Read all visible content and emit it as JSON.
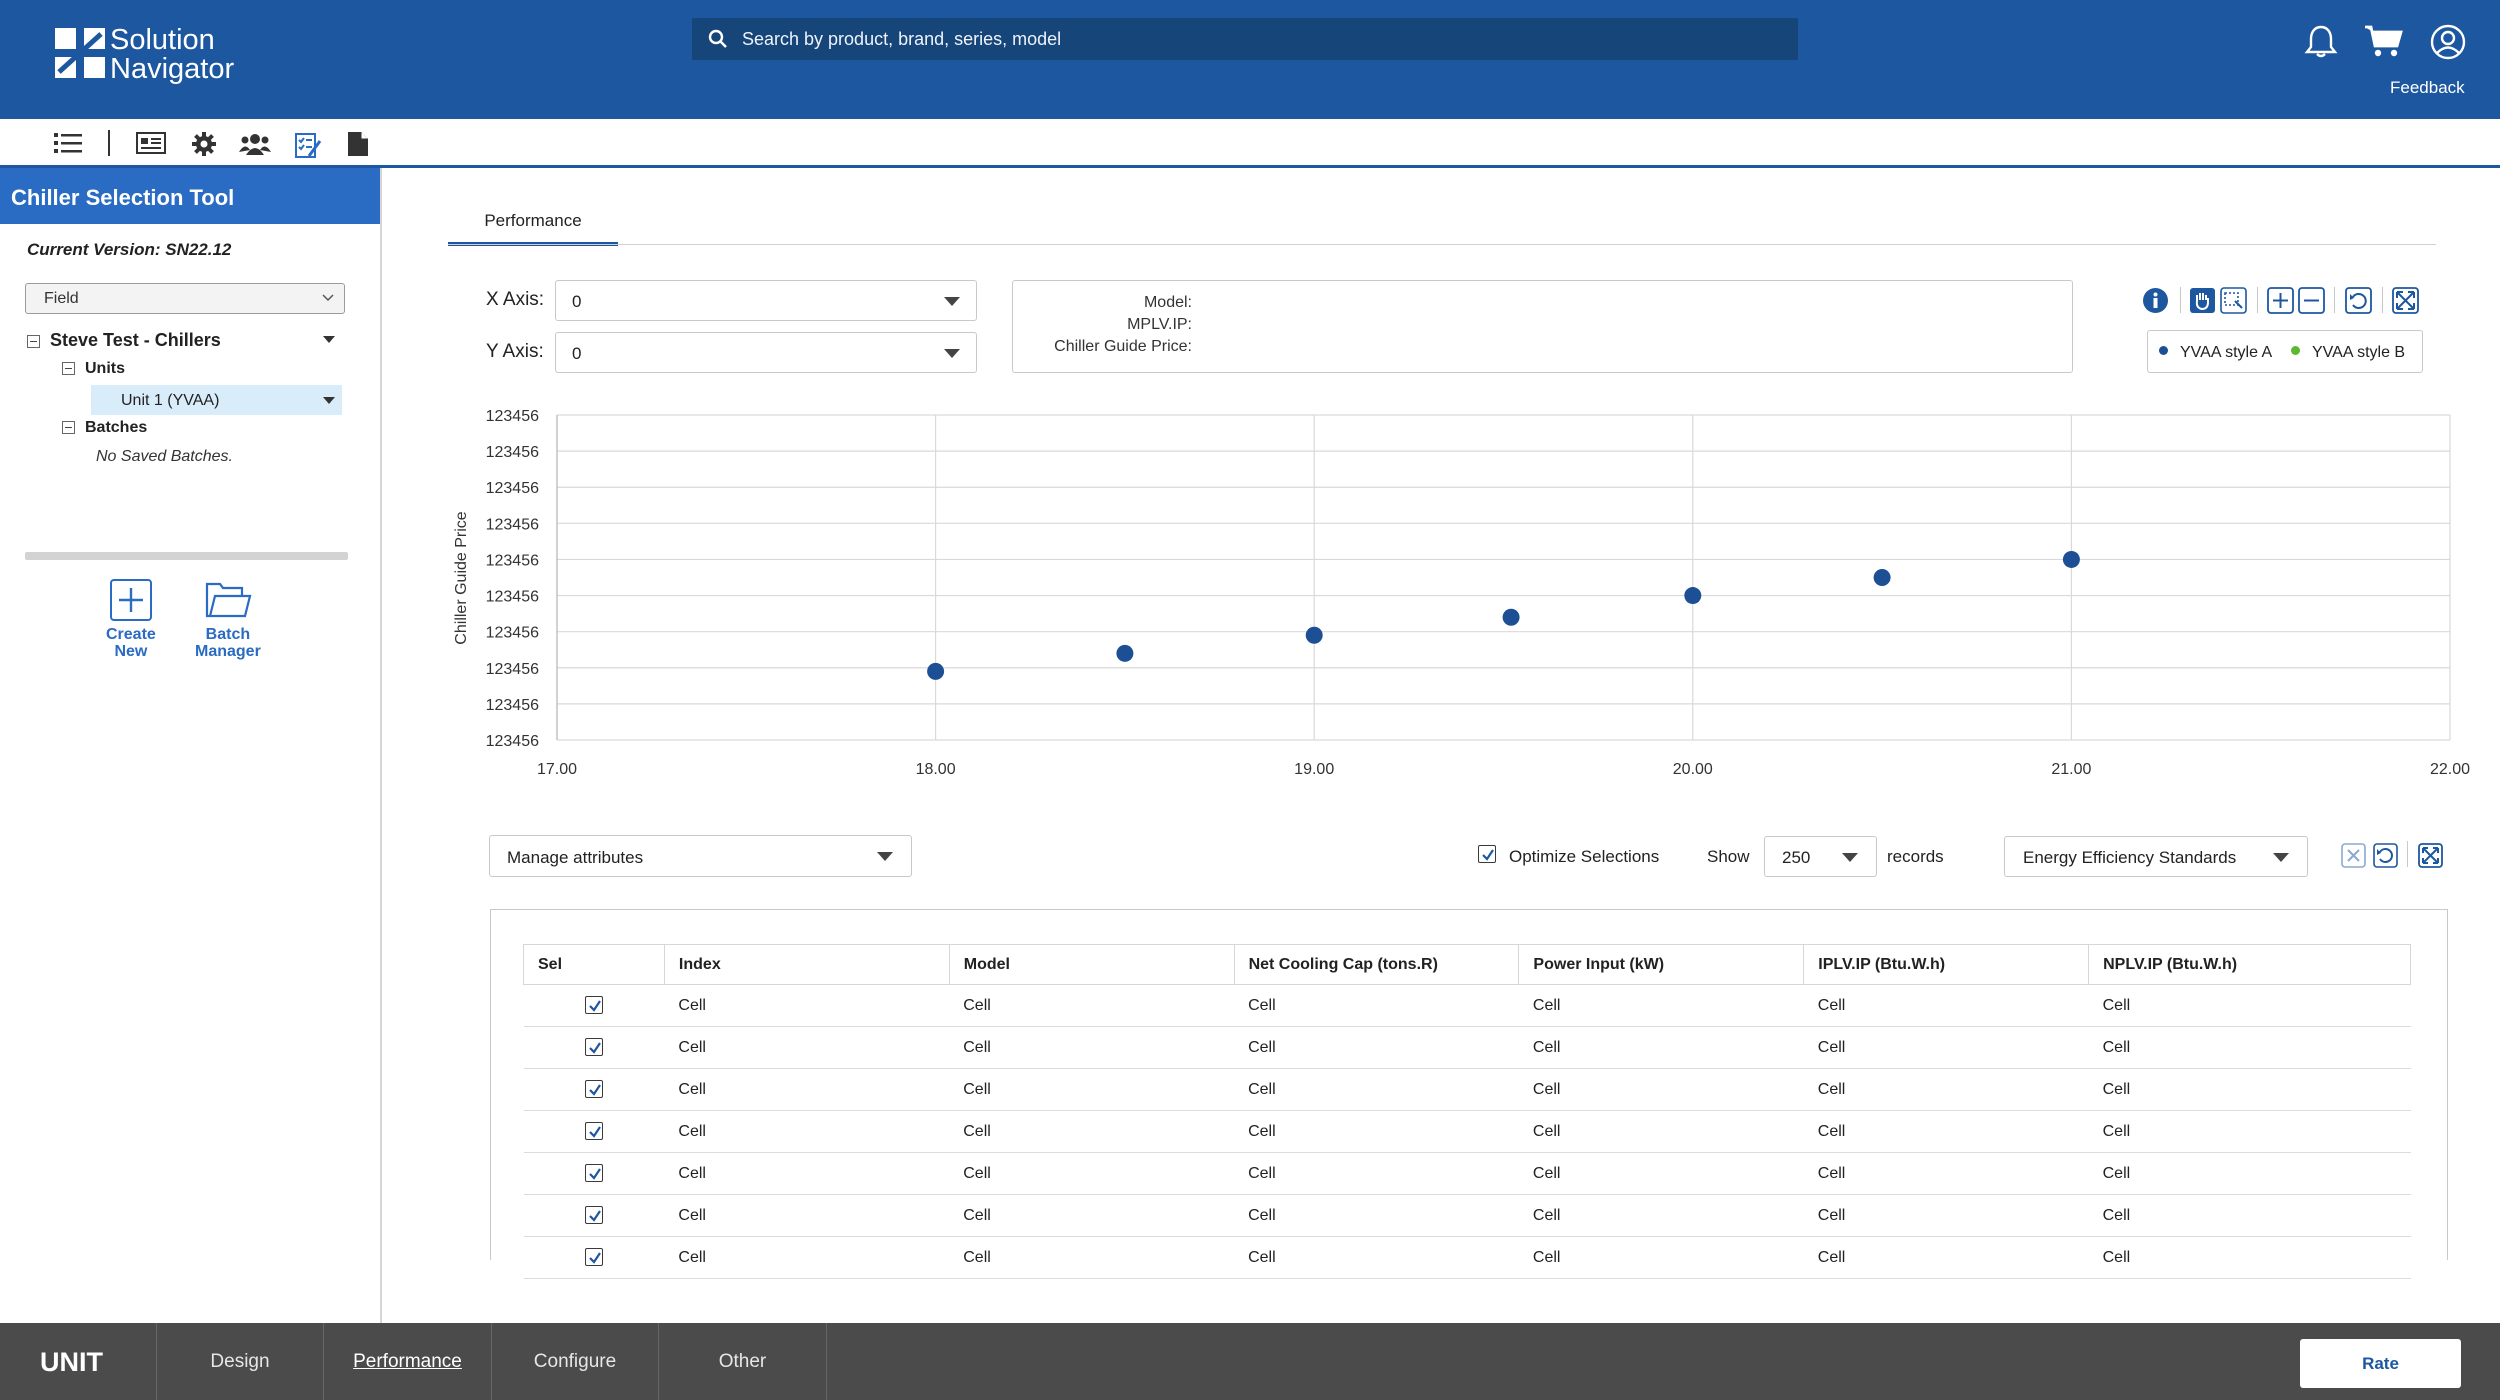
{
  "header": {
    "brand_line1": "Solution",
    "brand_line2": "Navigator",
    "search_placeholder": "Search by product, brand, series, model",
    "feedback_label": "Feedback",
    "icons": [
      "bell-icon",
      "cart-icon",
      "user-icon"
    ]
  },
  "toolbar": {
    "icons": [
      "list-icon",
      "catalog-icon",
      "gear-icon",
      "users-icon",
      "checklist-icon",
      "document-icon"
    ]
  },
  "sidebar": {
    "title": "Chiller Selection Tool",
    "version": "Current Version: SN22.12",
    "field_select": "Field",
    "tree": {
      "root": "Steve Test - Chillers",
      "units_label": "Units",
      "unit_item": "Unit 1 (YVAA)",
      "batches_label": "Batches",
      "no_batches": "No Saved Batches."
    },
    "create_new": [
      "Create",
      "New"
    ],
    "batch_manager": [
      "Batch",
      "Manager"
    ]
  },
  "main": {
    "tab": "Performance",
    "x_axis": {
      "label": "X Axis:",
      "value": "0"
    },
    "y_axis": {
      "label": "Y Axis:",
      "value": "0"
    },
    "info": {
      "model_label": "Model:",
      "mplv_label": "MPLV.IP:",
      "price_label": "Chiller Guide Price:"
    },
    "legend": [
      {
        "name": "YVAA style A",
        "color": "#1d4f94"
      },
      {
        "name": "YVAA style B",
        "color": "#5cb82e"
      }
    ]
  },
  "chart_data": {
    "type": "scatter",
    "ylabel": "Chiller Guide Price",
    "xlabel": "",
    "xlim": [
      17.0,
      22.0
    ],
    "x_ticks": [
      "17.00",
      "18.00",
      "19.00",
      "20.00",
      "21.00",
      "22.00"
    ],
    "y_ticks": [
      "123456",
      "123456",
      "123456",
      "123456",
      "123456",
      "123456",
      "123456",
      "123456",
      "123456",
      "123456"
    ],
    "ylim": [
      0,
      9
    ],
    "series": [
      {
        "name": "YVAA style A",
        "x": [
          18.0,
          18.5,
          19.0,
          19.52,
          20.0,
          20.5,
          21.0
        ],
        "y": [
          1.9,
          2.4,
          2.9,
          3.4,
          4.0,
          4.5,
          5.0
        ]
      }
    ],
    "grid": true
  },
  "table_controls": {
    "manage_label": "Manage attributes",
    "optimize_label": "Optimize Selections",
    "show_label": "Show",
    "show_value": "250",
    "records_label": "records",
    "standards_value": "Energy Efficiency Standards"
  },
  "table": {
    "columns": [
      "Sel",
      "Index",
      "Model",
      "Net Cooling Cap (tons.R)",
      "Power Input (kW)",
      "IPLV.IP (Btu.W.h)",
      "NPLV.IP (Btu.W.h)"
    ],
    "rows": [
      [
        "Cell",
        "Cell",
        "Cell",
        "Cell",
        "Cell",
        "Cell"
      ],
      [
        "Cell",
        "Cell",
        "Cell",
        "Cell",
        "Cell",
        "Cell"
      ],
      [
        "Cell",
        "Cell",
        "Cell",
        "Cell",
        "Cell",
        "Cell"
      ],
      [
        "Cell",
        "Cell",
        "Cell",
        "Cell",
        "Cell",
        "Cell"
      ],
      [
        "Cell",
        "Cell",
        "Cell",
        "Cell",
        "Cell",
        "Cell"
      ],
      [
        "Cell",
        "Cell",
        "Cell",
        "Cell",
        "Cell",
        "Cell"
      ],
      [
        "Cell",
        "Cell",
        "Cell",
        "Cell",
        "Cell",
        "Cell"
      ]
    ]
  },
  "bottom": {
    "unit_label": "UNIT",
    "tabs": [
      "Design",
      "Performance",
      "Configure",
      "Other"
    ],
    "active_tab": "Performance",
    "rate_label": "Rate"
  }
}
